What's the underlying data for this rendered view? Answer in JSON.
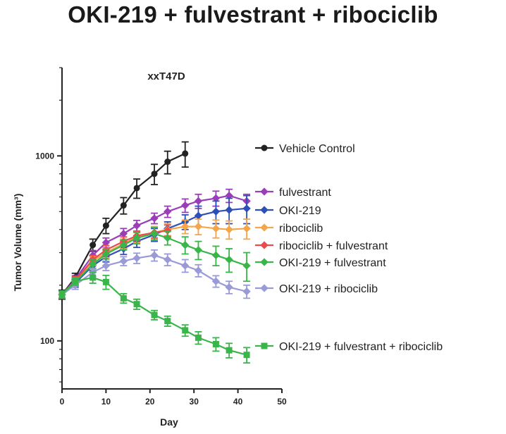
{
  "title": "OKI-219 + fulvestrant + ribociclib",
  "chart_data": {
    "type": "line",
    "title": "OKI-219 + fulvestrant + ribociclib",
    "subtitle": "xxT47D",
    "xlabel": "Day",
    "ylabel": "Tumor Volume (mm³)",
    "yscale": "log",
    "xlim": [
      0,
      50
    ],
    "ylim": [
      55,
      3000
    ],
    "xticks": [
      0,
      10,
      20,
      30,
      40,
      50
    ],
    "yticks": [
      100,
      1000
    ],
    "legend_position": "right",
    "series": [
      {
        "name": "Vehicle Control",
        "color": "#222222",
        "marker": "circle",
        "x": [
          0,
          3,
          7,
          10,
          14,
          17,
          21,
          24,
          28
        ],
        "y": [
          178,
          220,
          330,
          420,
          540,
          670,
          800,
          930,
          1030
        ],
        "err": [
          10,
          12,
          25,
          40,
          55,
          80,
          100,
          130,
          160
        ]
      },
      {
        "name": "fulvestrant",
        "color": "#9b3db8",
        "marker": "diamond",
        "x": [
          0,
          3,
          7,
          10,
          14,
          17,
          21,
          24,
          28,
          31,
          35,
          38,
          42
        ],
        "y": [
          178,
          215,
          290,
          340,
          380,
          420,
          460,
          500,
          540,
          570,
          590,
          610,
          570
        ],
        "err": [
          8,
          10,
          18,
          20,
          25,
          28,
          30,
          35,
          45,
          50,
          55,
          50,
          50
        ]
      },
      {
        "name": "OKI-219",
        "color": "#2d4fb8",
        "marker": "diamond",
        "x": [
          0,
          3,
          7,
          10,
          14,
          17,
          21,
          24,
          28,
          31,
          35,
          38,
          42
        ],
        "y": [
          178,
          205,
          255,
          285,
          315,
          345,
          375,
          405,
          440,
          475,
          500,
          510,
          520
        ],
        "err": [
          8,
          10,
          15,
          18,
          22,
          25,
          30,
          35,
          40,
          60,
          70,
          80,
          90
        ]
      },
      {
        "name": "ribociclib",
        "color": "#f5a54a",
        "marker": "diamond",
        "x": [
          0,
          3,
          7,
          10,
          14,
          17,
          21,
          24,
          28,
          31,
          35,
          38,
          42
        ],
        "y": [
          178,
          210,
          270,
          300,
          335,
          365,
          385,
          400,
          415,
          415,
          405,
          400,
          405
        ],
        "err": [
          8,
          10,
          15,
          18,
          20,
          25,
          30,
          30,
          35,
          40,
          45,
          45,
          50
        ]
      },
      {
        "name": "ribociclib + fulvestrant",
        "color": "#e84c4c",
        "marker": "diamond",
        "x": [
          0,
          3,
          7,
          10,
          14,
          17,
          21,
          24
        ],
        "y": [
          178,
          212,
          275,
          310,
          345,
          370,
          385,
          395
        ],
        "err": [
          8,
          10,
          15,
          18,
          20,
          22,
          25,
          28
        ]
      },
      {
        "name": "OKI-219 + fulvestrant",
        "color": "#3ab54a",
        "marker": "diamond",
        "x": [
          0,
          3,
          7,
          10,
          14,
          17,
          21,
          24,
          28,
          31,
          35,
          38,
          42
        ],
        "y": [
          178,
          208,
          260,
          295,
          330,
          360,
          380,
          360,
          330,
          310,
          290,
          275,
          255
        ],
        "err": [
          8,
          10,
          15,
          18,
          20,
          25,
          30,
          30,
          35,
          35,
          35,
          40,
          45
        ]
      },
      {
        "name": "OKI-219 + ribociclib",
        "color": "#9a9ad8",
        "marker": "diamond",
        "x": [
          0,
          3,
          7,
          10,
          14,
          17,
          21,
          24,
          28,
          31,
          35,
          38,
          42
        ],
        "y": [
          178,
          200,
          235,
          255,
          270,
          280,
          290,
          275,
          255,
          240,
          210,
          195,
          185
        ],
        "err": [
          8,
          10,
          12,
          15,
          15,
          18,
          20,
          20,
          20,
          18,
          15,
          15,
          15
        ]
      },
      {
        "name": "OKI-219 + fulvestrant + ribociclib",
        "color": "#3ab54a",
        "marker": "square",
        "x": [
          0,
          3,
          7,
          10,
          14,
          17,
          21,
          24,
          28,
          31,
          35,
          38,
          42
        ],
        "y": [
          178,
          210,
          220,
          208,
          170,
          158,
          138,
          128,
          114,
          104,
          96,
          89,
          84
        ],
        "err": [
          8,
          10,
          15,
          18,
          10,
          10,
          8,
          8,
          8,
          8,
          8,
          8,
          8
        ]
      }
    ]
  }
}
